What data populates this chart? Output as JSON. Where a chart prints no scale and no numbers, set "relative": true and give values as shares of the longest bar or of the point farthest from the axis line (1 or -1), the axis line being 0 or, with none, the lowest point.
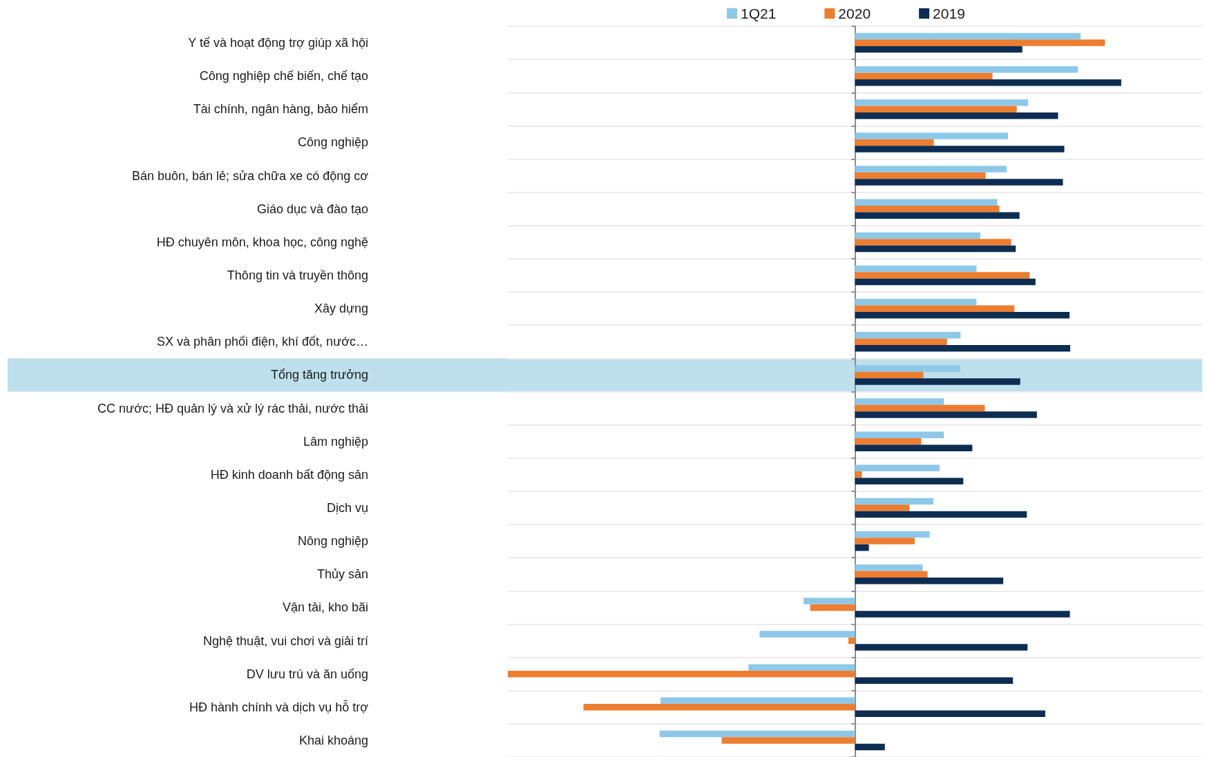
{
  "chart_data": {
    "type": "bar",
    "orientation": "horizontal",
    "relative": true,
    "grid": "y",
    "legend": "top",
    "categories": [
      "Y tế và hoạt động trợ giúp xã hội",
      "Công nghiệp chế biến, chế tạo",
      "Tài chính, ngân hàng, bảo hiểm",
      "Công nghiệp",
      "Bán buôn, bán lẻ; sửa chữa xe có động cơ",
      "Giáo dục và đào tạo",
      "HĐ chuyên môn, khoa học, công nghệ",
      "Thông tin và truyền thông",
      "Xây dựng",
      "SX và phân phối điện, khí đốt, nước…",
      "Tổng tăng trưởng",
      "CC nước; HĐ quản lý và xử lý rác thải, nước thải",
      "Lâm nghiệp",
      "HĐ kinh doanh bất động sản",
      "Dịch vụ",
      "Nông nghiệp",
      "Thủy sản",
      "Vận tải, kho bãi",
      "Nghệ thuật, vui chơi và giải trí",
      "DV lưu trú và ăn uống",
      "HĐ hành chính và dịch vụ hỗ trợ",
      "Khai khoáng"
    ],
    "series": [
      {
        "name": "1Q21",
        "color": "#8ec8e8",
        "values": [
          0.65,
          0.642,
          0.499,
          0.441,
          0.437,
          0.41,
          0.361,
          0.35,
          0.35,
          0.304,
          0.303,
          0.256,
          0.256,
          0.244,
          0.226,
          0.215,
          0.195,
          -0.148,
          -0.275,
          -0.307,
          -0.56,
          -0.563
        ]
      },
      {
        "name": "2020",
        "color": "#ed7d31",
        "values": [
          0.72,
          0.396,
          0.466,
          0.227,
          0.376,
          0.416,
          0.45,
          0.503,
          0.459,
          0.265,
          0.197,
          0.374,
          0.191,
          0.02,
          0.157,
          0.172,
          0.209,
          -0.129,
          -0.019,
          -1,
          -0.782,
          -0.384
        ]
      },
      {
        "name": "2019",
        "color": "#0e2d52",
        "values": [
          0.482,
          0.767,
          0.585,
          0.603,
          0.599,
          0.474,
          0.463,
          0.52,
          0.618,
          0.62,
          0.476,
          0.524,
          0.338,
          0.312,
          0.495,
          0.04,
          0.427,
          0.619,
          0.497,
          0.455,
          0.548,
          0.086
        ]
      }
    ],
    "bands": [
      {
        "axis": "y",
        "from": "Tổng tăng trưởng",
        "to": "Tổng tăng trưởng",
        "color": "#bde0ec"
      }
    ]
  }
}
